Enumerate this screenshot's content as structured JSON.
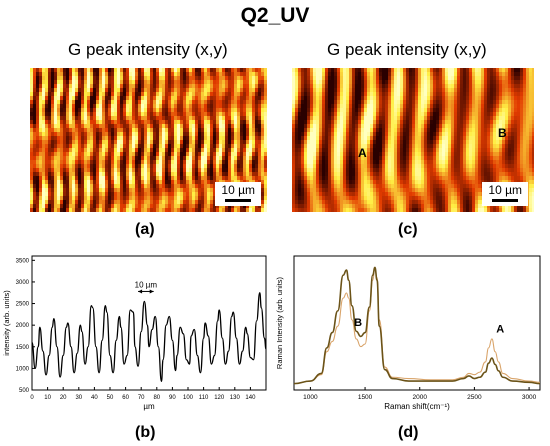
{
  "figure": {
    "title": "Q2_UV",
    "panels": [
      {
        "id": "a",
        "label": "(a)",
        "map_title": "G peak intensity (x,y)",
        "scalebar": "10 µm"
      },
      {
        "id": "b",
        "label": "(b)"
      },
      {
        "id": "c",
        "label": "(c)",
        "map_title": "G peak intensity (x,y)",
        "scalebar": "10 µm",
        "point_labels": [
          "A",
          "B"
        ]
      },
      {
        "id": "d",
        "label": "(d)"
      }
    ]
  },
  "colors": {
    "map_low": "#2a0000",
    "map_mid": "#e23b00",
    "map_high": "#ffee44",
    "map_peak": "#ffffc0",
    "profile_line": "#000000",
    "spectrum_A": "#d9a46a",
    "spectrum_B": "#6b5318"
  },
  "chart_data": [
    {
      "type": "line",
      "panel": "(b)",
      "xlabel": "µm",
      "ylabel": "intensity (arb. units)",
      "xlim": [
        0,
        150
      ],
      "ylim": [
        500,
        3600
      ],
      "xticks": [
        "0",
        "10",
        "20",
        "30",
        "40",
        "50",
        "60",
        "70",
        "80",
        "90",
        "100",
        "110",
        "120",
        "130",
        "140"
      ],
      "yticks": [
        "500",
        "1000",
        "1500",
        "2000",
        "2500",
        "3000",
        "3500"
      ],
      "annotation": "10 µm",
      "series": [
        {
          "x": [
            0,
            2,
            4,
            5,
            7,
            9,
            11,
            13,
            14,
            16,
            18,
            20,
            22,
            23,
            25,
            27,
            29,
            31,
            32,
            34,
            36,
            38,
            39,
            41,
            43,
            45,
            47,
            48,
            50,
            52,
            54,
            56,
            57,
            59,
            61,
            63,
            65,
            66,
            68,
            70,
            72,
            74,
            75,
            77,
            79,
            81,
            83,
            84,
            86,
            88,
            90,
            92,
            93,
            95,
            97,
            99,
            101,
            102,
            104,
            106,
            108,
            110,
            111,
            113,
            115,
            117,
            119,
            120,
            122,
            124,
            126,
            128,
            129,
            131,
            133,
            135,
            137,
            138,
            140,
            142,
            144,
            146,
            147,
            149,
            150
          ],
          "y": [
            1600,
            1000,
            1500,
            1950,
            1400,
            850,
            1300,
            1950,
            2150,
            1500,
            800,
            1300,
            1950,
            2050,
            1500,
            900,
            1350,
            2000,
            1850,
            1100,
            1500,
            2450,
            2400,
            1500,
            900,
            1650,
            2450,
            2300,
            1300,
            900,
            1650,
            2200,
            1950,
            1100,
            1300,
            2350,
            2300,
            1500,
            1050,
            1850,
            2550,
            2000,
            1500,
            1900,
            2200,
            1500,
            700,
            1200,
            2000,
            2200,
            1650,
            950,
            1300,
            1950,
            1800,
            1200,
            1100,
            1750,
            1900,
            1300,
            900,
            1700,
            2050,
            1750,
            1100,
            1300,
            2100,
            2350,
            1700,
            1100,
            1400,
            2200,
            2300,
            1700,
            1100,
            1400,
            1950,
            1800,
            1250,
            1200,
            2100,
            2750,
            2400,
            1700,
            1450
          ]
        }
      ]
    },
    {
      "type": "line",
      "panel": "(d)",
      "xlabel": "Raman shift(cm⁻¹)",
      "ylabel": "Raman Intensity (arb. units)",
      "xlim": [
        850,
        3100
      ],
      "ylim": [
        0,
        1.05
      ],
      "xticks": [
        "1000",
        "1500",
        "2000",
        "2500",
        "3000"
      ],
      "annotations": [
        "A",
        "B"
      ],
      "series": [
        {
          "name": "A",
          "x": [
            850,
            1000,
            1100,
            1150,
            1200,
            1250,
            1300,
            1330,
            1350,
            1380,
            1420,
            1460,
            1500,
            1540,
            1570,
            1590,
            1610,
            1630,
            1680,
            1750,
            1900,
            2100,
            2300,
            2400,
            2450,
            2500,
            2550,
            2600,
            2630,
            2660,
            2690,
            2720,
            2760,
            2850,
            3000,
            3100
          ],
          "y": [
            0.05,
            0.07,
            0.12,
            0.3,
            0.38,
            0.5,
            0.72,
            0.76,
            0.72,
            0.55,
            0.4,
            0.34,
            0.36,
            0.62,
            0.86,
            0.95,
            0.88,
            0.55,
            0.18,
            0.1,
            0.09,
            0.08,
            0.08,
            0.1,
            0.13,
            0.12,
            0.14,
            0.22,
            0.33,
            0.4,
            0.3,
            0.22,
            0.13,
            0.09,
            0.07,
            0.06
          ]
        },
        {
          "name": "B",
          "x": [
            850,
            1000,
            1100,
            1150,
            1200,
            1250,
            1300,
            1330,
            1350,
            1380,
            1420,
            1460,
            1500,
            1540,
            1570,
            1590,
            1610,
            1630,
            1680,
            1750,
            1900,
            2100,
            2300,
            2400,
            2450,
            2500,
            2550,
            2600,
            2630,
            2660,
            2690,
            2720,
            2760,
            2850,
            3000,
            3100
          ],
          "y": [
            0.05,
            0.07,
            0.13,
            0.33,
            0.45,
            0.62,
            0.9,
            0.94,
            0.86,
            0.66,
            0.46,
            0.42,
            0.45,
            0.65,
            0.9,
            0.96,
            0.86,
            0.5,
            0.16,
            0.09,
            0.07,
            0.07,
            0.07,
            0.09,
            0.11,
            0.09,
            0.1,
            0.14,
            0.21,
            0.25,
            0.2,
            0.15,
            0.1,
            0.07,
            0.06,
            0.05
          ]
        }
      ]
    }
  ]
}
